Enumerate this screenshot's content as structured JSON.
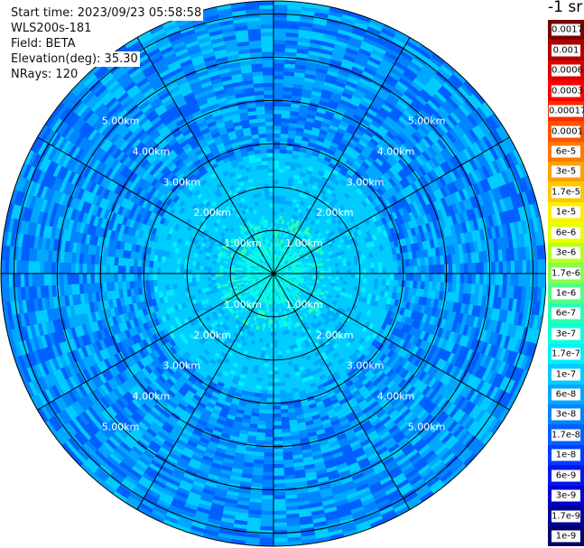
{
  "header": {
    "start_time": "Start time: 2023/09/23 05:58:58",
    "instrument": "WLS200s-181",
    "field": "Field: BETA",
    "elevation": "Elevation(deg): 35.30",
    "nrays": "NRays: 120"
  },
  "colorbar": {
    "unit": "-1 sr",
    "levels": [
      {
        "label": "0.0017",
        "color": "#7a0000"
      },
      {
        "label": "0.001",
        "color": "#b00000"
      },
      {
        "label": "0.0006",
        "color": "#dc0000"
      },
      {
        "label": "0.0003",
        "color": "#ff0000"
      },
      {
        "label": "0.00017",
        "color": "#ff2a00"
      },
      {
        "label": "0.0001",
        "color": "#ff5200"
      },
      {
        "label": "6e-5",
        "color": "#ff7a00"
      },
      {
        "label": "3e-5",
        "color": "#ffa000"
      },
      {
        "label": "1.7e-5",
        "color": "#ffc800"
      },
      {
        "label": "1e-5",
        "color": "#ffee00"
      },
      {
        "label": "6e-6",
        "color": "#e8ff00"
      },
      {
        "label": "3e-6",
        "color": "#b8ff20"
      },
      {
        "label": "1.7e-6",
        "color": "#86ff50"
      },
      {
        "label": "1e-6",
        "color": "#50ff86"
      },
      {
        "label": "6e-7",
        "color": "#28ffb0"
      },
      {
        "label": "3e-7",
        "color": "#10ffd8"
      },
      {
        "label": "1.7e-7",
        "color": "#00f0ff"
      },
      {
        "label": "1e-7",
        "color": "#00ccff"
      },
      {
        "label": "6e-8",
        "color": "#00a8ff"
      },
      {
        "label": "3e-8",
        "color": "#0084ff"
      },
      {
        "label": "1.7e-8",
        "color": "#0060ff"
      },
      {
        "label": "1e-8",
        "color": "#003cff"
      },
      {
        "label": "6e-9",
        "color": "#0018f0"
      },
      {
        "label": "3e-9",
        "color": "#0000d0"
      },
      {
        "label": "1.7e-9",
        "color": "#00009a"
      },
      {
        "label": "1e-9",
        "color": "#000066"
      }
    ]
  },
  "map": {
    "range_labels": [
      "1.00km",
      "2.00km",
      "3.00km",
      "4.00km",
      "5.00km"
    ],
    "range_rings_km": [
      1,
      2,
      3,
      4,
      5,
      6
    ],
    "max_range_km": 6.3,
    "radial_spokes_deg": [
      0,
      30,
      60,
      90,
      120,
      150,
      180,
      210,
      240,
      270,
      300,
      330
    ]
  }
}
